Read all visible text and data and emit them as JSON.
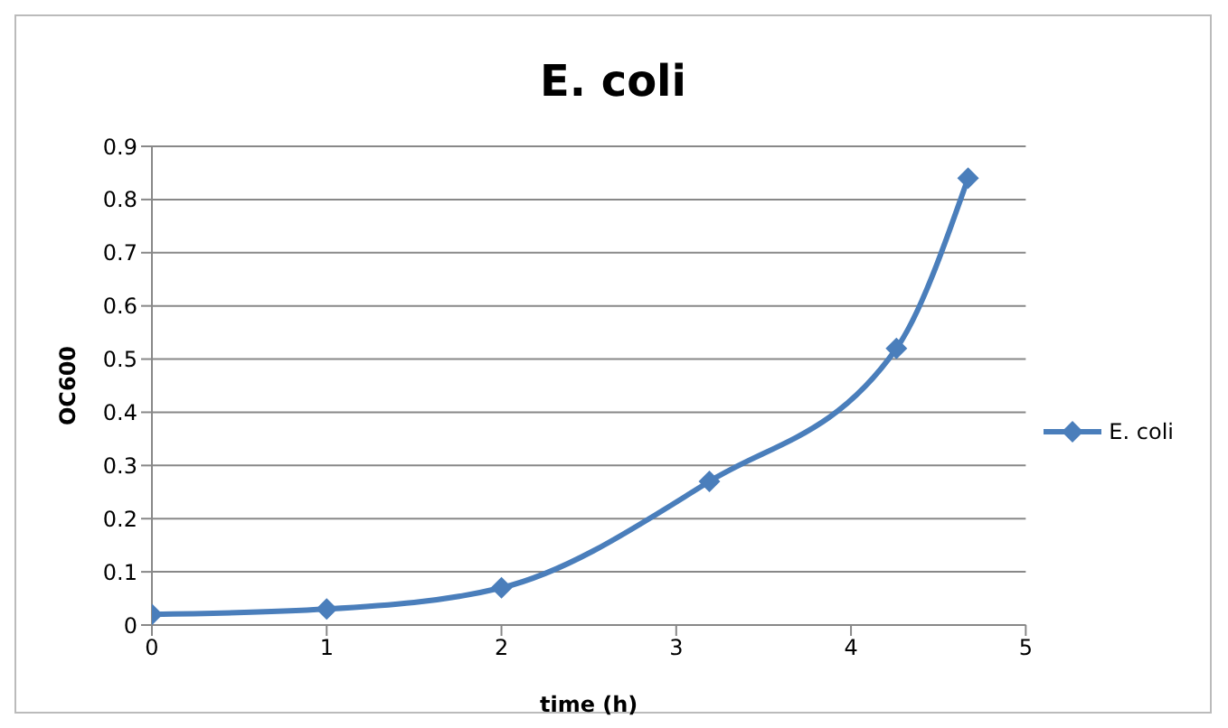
{
  "chart_data": {
    "type": "line",
    "title": "E. coli",
    "xlabel": "time (h)",
    "ylabel": "OC600",
    "x": [
      0,
      1,
      2,
      3.19,
      4.26,
      4.67
    ],
    "series": [
      {
        "name": "E. coli",
        "color": "#4a7ebb",
        "values": [
          0.02,
          0.03,
          0.07,
          0.27,
          0.52,
          0.84
        ]
      }
    ],
    "xlim": [
      0,
      5
    ],
    "xticks": [
      0,
      1,
      2,
      3,
      4,
      5
    ],
    "ylim": [
      0,
      0.9
    ],
    "yticks": [
      0,
      0.1,
      0.2,
      0.3,
      0.4,
      0.5,
      0.6,
      0.7,
      0.8,
      0.9
    ],
    "grid": "y",
    "legend": "right",
    "marker": "diamond",
    "line_style": "solid"
  }
}
